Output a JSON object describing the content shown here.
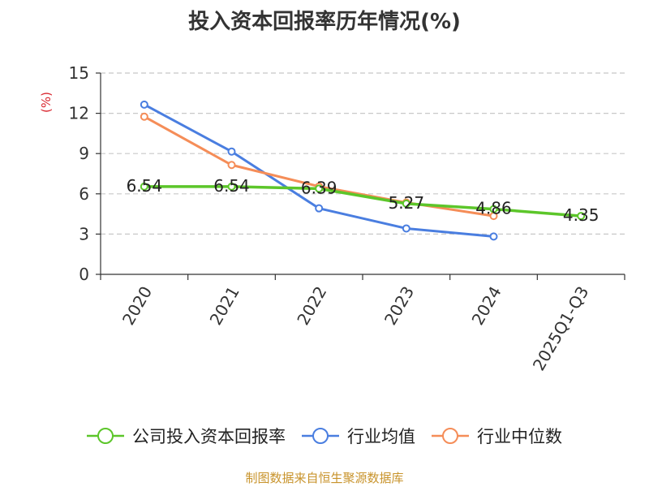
{
  "title": "投入资本回报率历年情况(%)",
  "source": "制图数据来自恒生聚源数据库",
  "colors": {
    "company": "#5cc62a",
    "industry_avg": "#4a7ee0",
    "industry_median": "#f58d58",
    "grid": "#c8c8c8",
    "axis": "#333333",
    "unit": "#d9262e"
  },
  "chart_data": {
    "type": "line",
    "title": "投入资本回报率历年情况(%)",
    "ylabel": "(%)",
    "xlabel": "",
    "ylim": [
      0,
      15
    ],
    "yticks": [
      0,
      3,
      6,
      9,
      12,
      15
    ],
    "categories": [
      "2020",
      "2021",
      "2022",
      "2023",
      "2024",
      "2025Q1-Q3"
    ],
    "grid": true,
    "legend": "bottom",
    "series": [
      {
        "name": "公司投入资本回报率",
        "color_key": "company",
        "values": [
          6.54,
          6.54,
          6.39,
          5.27,
          4.86,
          4.35
        ],
        "labels": [
          "6.54",
          "6.54",
          "6.39",
          "5.27",
          "4.86",
          "4.35"
        ]
      },
      {
        "name": "行业均值",
        "color_key": "industry_avg",
        "values": [
          12.65,
          9.15,
          4.92,
          3.42,
          2.82,
          null
        ]
      },
      {
        "name": "行业中位数",
        "color_key": "industry_median",
        "values": [
          11.75,
          8.15,
          6.55,
          5.35,
          4.35,
          null
        ]
      }
    ]
  }
}
